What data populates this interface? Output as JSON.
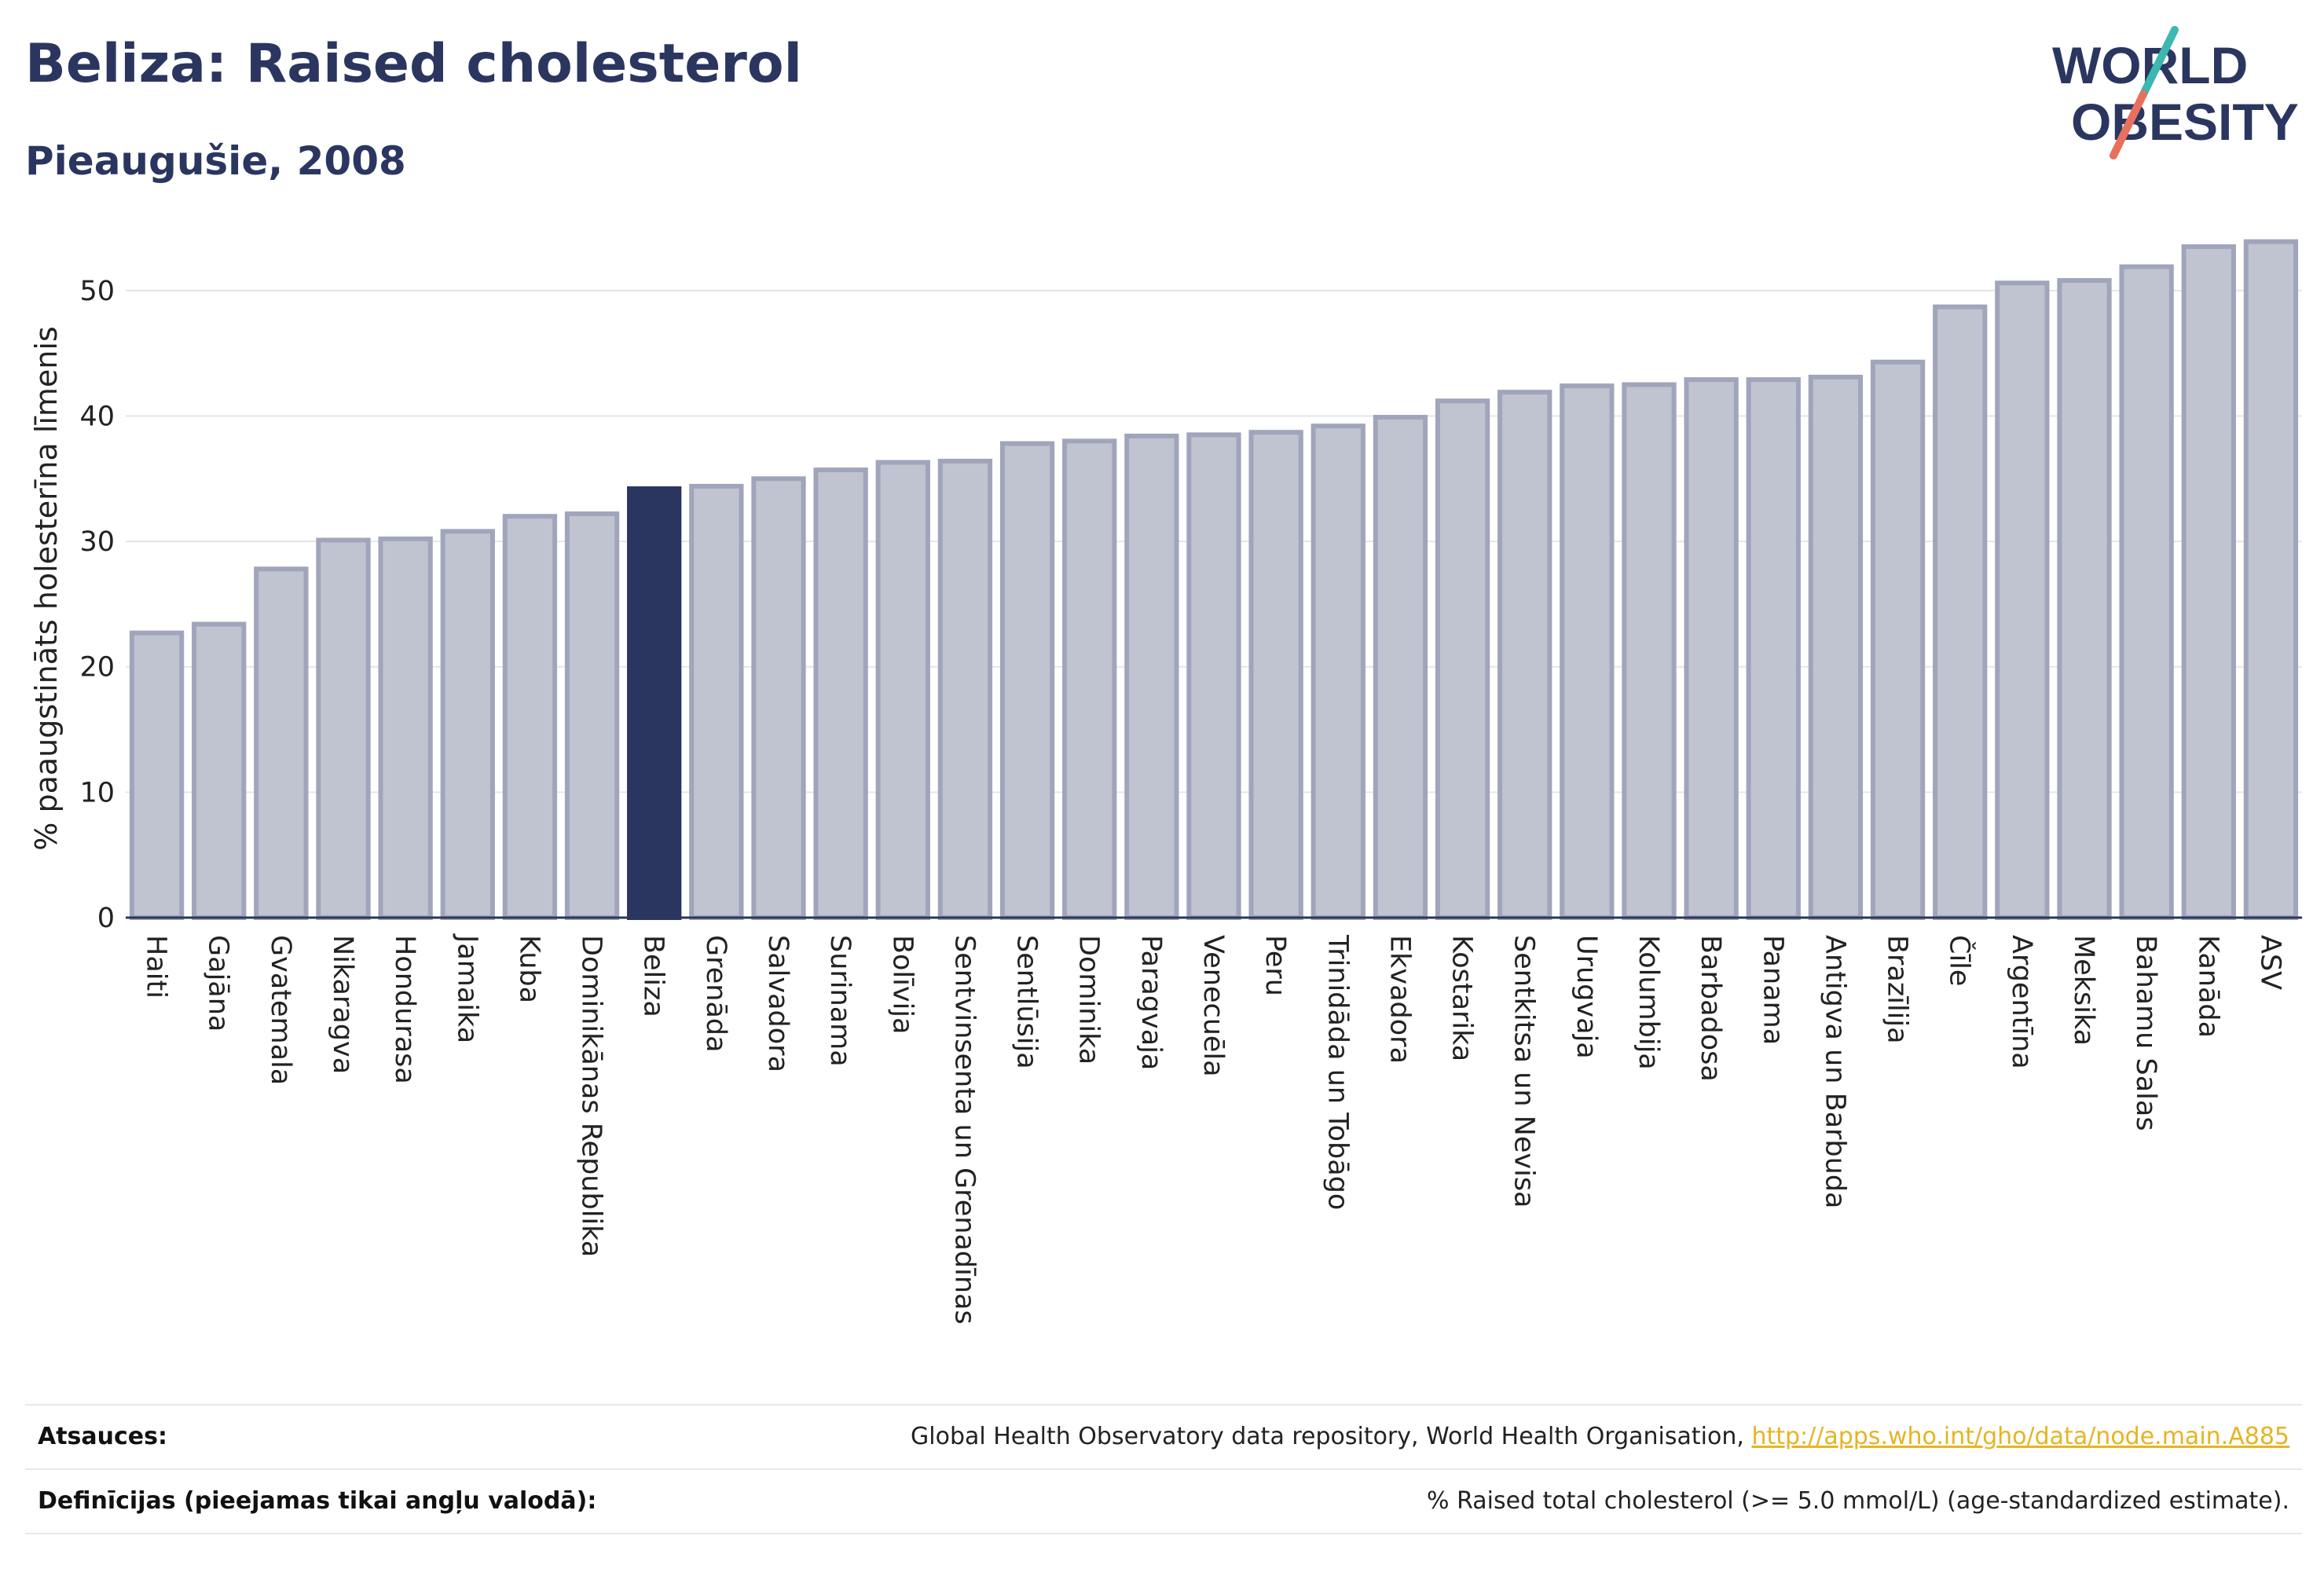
{
  "header": {
    "title": "Beliza: Raised cholesterol",
    "subtitle": "Pieaugušie, 2008"
  },
  "logo": {
    "line1": "WORLD",
    "line2": "OBESITY",
    "icon": "world-obesity-logo"
  },
  "colors": {
    "highlight": "#2b3660",
    "bar_fill": "#c0c3d0",
    "bar_stroke": "#a0a5bb",
    "grid": "#e4e6ec",
    "link": "#e6b422"
  },
  "chart_data": {
    "type": "bar",
    "title": "Beliza: Raised cholesterol",
    "subtitle": "Pieaugušie, 2008",
    "ylabel": "% paaugstināts holesterīna līmenis",
    "xlabel": "",
    "ylim": [
      0,
      55
    ],
    "yticks": [
      0,
      10,
      20,
      30,
      40,
      50
    ],
    "grid": true,
    "highlight": "Beliza",
    "categories": [
      "Haiti",
      "Gajāna",
      "Gvatemala",
      "Nikaragva",
      "Hondurasa",
      "Jamaika",
      "Kuba",
      "Dominikānas Republika",
      "Beliza",
      "Grenāda",
      "Salvadora",
      "Surinama",
      "Bolīvija",
      "Sentvinsenta un Grenadīnas",
      "Sentlūsija",
      "Dominika",
      "Paragvaja",
      "Venecuēla",
      "Peru",
      "Trinidāda un Tobāgo",
      "Ekvadora",
      "Kostarika",
      "Sentkitsa un Nevisa",
      "Urugvaja",
      "Kolumbija",
      "Barbadosa",
      "Panama",
      "Antigva un Barbuda",
      "Brazīlija",
      "Čīle",
      "Argentīna",
      "Meksika",
      "Bahamu Salas",
      "Kanāda",
      "ASV"
    ],
    "values": [
      22.7,
      23.4,
      27.8,
      30.1,
      30.2,
      30.8,
      32.0,
      32.2,
      34.2,
      34.4,
      35.0,
      35.7,
      36.3,
      36.4,
      37.8,
      38.0,
      38.4,
      38.5,
      38.7,
      39.2,
      39.9,
      41.2,
      41.9,
      42.4,
      42.5,
      42.9,
      42.9,
      43.1,
      44.3,
      48.7,
      50.6,
      50.8,
      51.9,
      53.5,
      53.9
    ]
  },
  "footer": {
    "sources_label": "Atsauces:",
    "sources_text": "Global Health Observatory data repository, World Health Organisation, ",
    "sources_link": "http://apps.who.int/gho/data/node.main.A885",
    "definitions_label": "Definīcijas (pieejamas tikai angļu valodā):",
    "definitions_text": "% Raised total cholesterol (>= 5.0 mmol/L) (age-standardized estimate)."
  }
}
